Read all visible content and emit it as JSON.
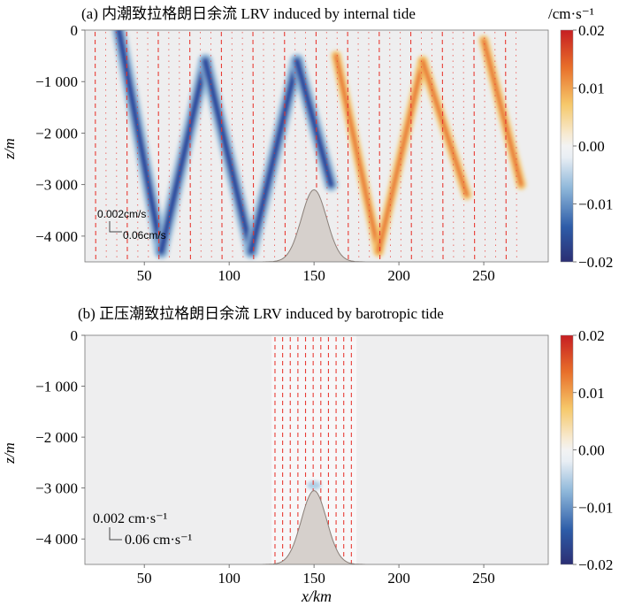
{
  "figure_title": "",
  "chart_data": [
    {
      "type": "heatmap",
      "panel_label": "(a)",
      "title": "(a) 内潮致拉格朗日余流 LRV induced by internal tide",
      "colorbar_unit": "/cm·s⁻¹",
      "xlabel": "",
      "ylabel": "z/m",
      "xlim": [
        15,
        288
      ],
      "ylim": [
        -4500,
        0
      ],
      "x_ticks": [
        50,
        100,
        150,
        200,
        250
      ],
      "x_tick_labels": [
        "50",
        "100",
        "150",
        "200",
        "250"
      ],
      "y_ticks": [
        0,
        -1000,
        -2000,
        -3000,
        -4000
      ],
      "y_tick_labels": [
        "0",
        "−1 000",
        "−2 000",
        "−3 000",
        "−4 000"
      ],
      "colorbar_range": [
        -0.02,
        0.02
      ],
      "colorbar_ticks": [
        0.02,
        0.01,
        0.0,
        -0.01,
        -0.02
      ],
      "colorbar_tick_labels": [
        "0.02",
        "0.01",
        "0.00",
        "−0.01",
        "−0.02"
      ],
      "ridge": {
        "center_km": 150,
        "peak_depth_m": -3100,
        "base_depth_m": -4500
      },
      "beams_negative": [
        {
          "from": [
            35,
            0
          ],
          "to": [
            60,
            -4300
          ]
        },
        {
          "from": [
            60,
            -4300
          ],
          "to": [
            86,
            -600
          ]
        },
        {
          "from": [
            86,
            -600
          ],
          "to": [
            113,
            -4300
          ]
        },
        {
          "from": [
            113,
            -4300
          ],
          "to": [
            140,
            -600
          ]
        },
        {
          "from": [
            140,
            -600
          ],
          "to": [
            160,
            -3000
          ]
        }
      ],
      "beams_positive": [
        {
          "from": [
            163,
            -500
          ],
          "to": [
            188,
            -4300
          ]
        },
        {
          "from": [
            188,
            -4300
          ],
          "to": [
            214,
            -600
          ]
        },
        {
          "from": [
            214,
            -600
          ],
          "to": [
            240,
            -3200
          ]
        },
        {
          "from": [
            250,
            -200
          ],
          "to": [
            272,
            -3000
          ]
        }
      ],
      "scale_legend": {
        "vertical": "0.002cm/s",
        "horizontal": "0.06cm/s"
      }
    },
    {
      "type": "heatmap",
      "panel_label": "(b)",
      "title": "(b) 正压潮致拉格朗日余流 LRV induced by barotropic tide",
      "colorbar_unit": "",
      "xlabel": "x/km",
      "ylabel": "z/m",
      "xlim": [
        15,
        288
      ],
      "ylim": [
        -4500,
        0
      ],
      "x_ticks": [
        50,
        100,
        150,
        200,
        250
      ],
      "x_tick_labels": [
        "50",
        "100",
        "150",
        "200",
        "250"
      ],
      "y_ticks": [
        0,
        -1000,
        -2000,
        -3000,
        -4000
      ],
      "y_tick_labels": [
        "0",
        "−1 000",
        "−2 000",
        "−3 000",
        "−4 000"
      ],
      "colorbar_range": [
        -0.02,
        0.02
      ],
      "colorbar_ticks": [
        0.02,
        0.01,
        0.0,
        -0.01,
        -0.02
      ],
      "colorbar_tick_labels": [
        "0.02",
        "0.01",
        "0.00",
        "−0.01",
        "−0.02"
      ],
      "ridge": {
        "center_km": 150,
        "peak_depth_m": -3050,
        "base_depth_m": -4500
      },
      "active_range_km": [
        125,
        175
      ],
      "scale_legend": {
        "vertical": "0.002 cm·s⁻¹",
        "horizontal": "0.06 cm·s⁻¹"
      }
    }
  ],
  "colors": {
    "background": "#ffffff",
    "field_bg": "#eeeeef",
    "ridge_fill": "#d6d0cc",
    "ridge_edge": "#8a7f78",
    "vector": "#e8332b",
    "negative": "#2b4a9e",
    "positive": "#e86f2a",
    "axis": "#555555"
  }
}
